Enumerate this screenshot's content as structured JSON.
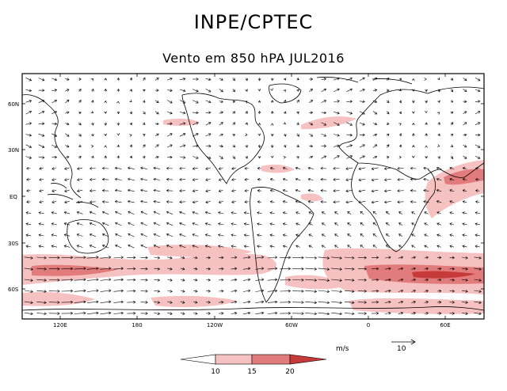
{
  "header": {
    "title": "INPE/CPTEC",
    "subtitle": "Vento em 850 hPA JUL2016"
  },
  "map": {
    "lat_labels": [
      "60N",
      "30N",
      "EQ",
      "30S",
      "60S"
    ],
    "lon_labels": [
      "120E",
      "180",
      "120W",
      "60W",
      "0",
      "60E"
    ],
    "land_outline_color": "#000000",
    "wind_arrow_color": "#000000"
  },
  "legend": {
    "units_label": "m/s",
    "thresholds": [
      "10",
      "15",
      "20"
    ],
    "colors": [
      "#ffffff",
      "#f6c1c1",
      "#e27b7b",
      "#c73a3a"
    ],
    "reference_vector_label": "10"
  }
}
